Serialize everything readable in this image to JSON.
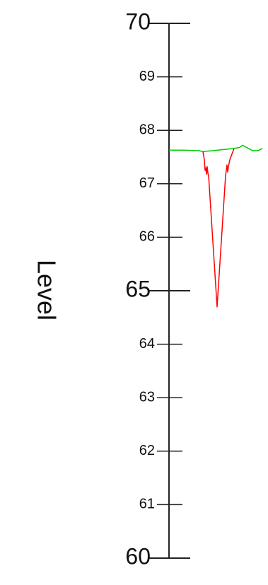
{
  "chart_data": {
    "type": "line",
    "title": "",
    "ylabel": "Level",
    "ylim": [
      60,
      70
    ],
    "major_ticks": [
      60,
      65,
      70
    ],
    "minor_ticks": [
      61,
      62,
      63,
      64,
      66,
      67,
      68,
      69
    ],
    "tick_labels": [
      "60",
      "61",
      "62",
      "63",
      "64",
      "65",
      "66",
      "67",
      "68",
      "69",
      "70"
    ],
    "grid": false,
    "series": [
      {
        "color": "#00cc00",
        "points": [
          [
            0,
            67.63
          ],
          [
            0.1,
            67.63
          ],
          [
            0.21,
            67.62
          ],
          [
            0.24,
            67.6
          ],
          [
            0.46,
            67.66
          ],
          [
            0.5,
            67.68
          ],
          [
            0.52,
            67.72
          ],
          [
            0.57,
            67.65
          ],
          [
            0.59,
            67.62
          ],
          [
            0.61,
            67.62
          ],
          [
            0.63,
            67.62
          ],
          [
            0.66,
            67.66
          ]
        ]
      },
      {
        "color": "#ff0000",
        "points": [
          [
            0.24,
            67.6
          ],
          [
            0.25,
            67.45
          ],
          [
            0.255,
            67.25
          ],
          [
            0.26,
            67.3
          ],
          [
            0.265,
            67.18
          ],
          [
            0.27,
            67.32
          ],
          [
            0.275,
            67.2
          ],
          [
            0.28,
            67.15
          ],
          [
            0.34,
            64.7
          ],
          [
            0.4,
            67.15
          ],
          [
            0.405,
            67.25
          ],
          [
            0.41,
            67.35
          ],
          [
            0.415,
            67.22
          ],
          [
            0.42,
            67.32
          ],
          [
            0.43,
            67.45
          ],
          [
            0.46,
            67.66
          ]
        ]
      }
    ]
  }
}
